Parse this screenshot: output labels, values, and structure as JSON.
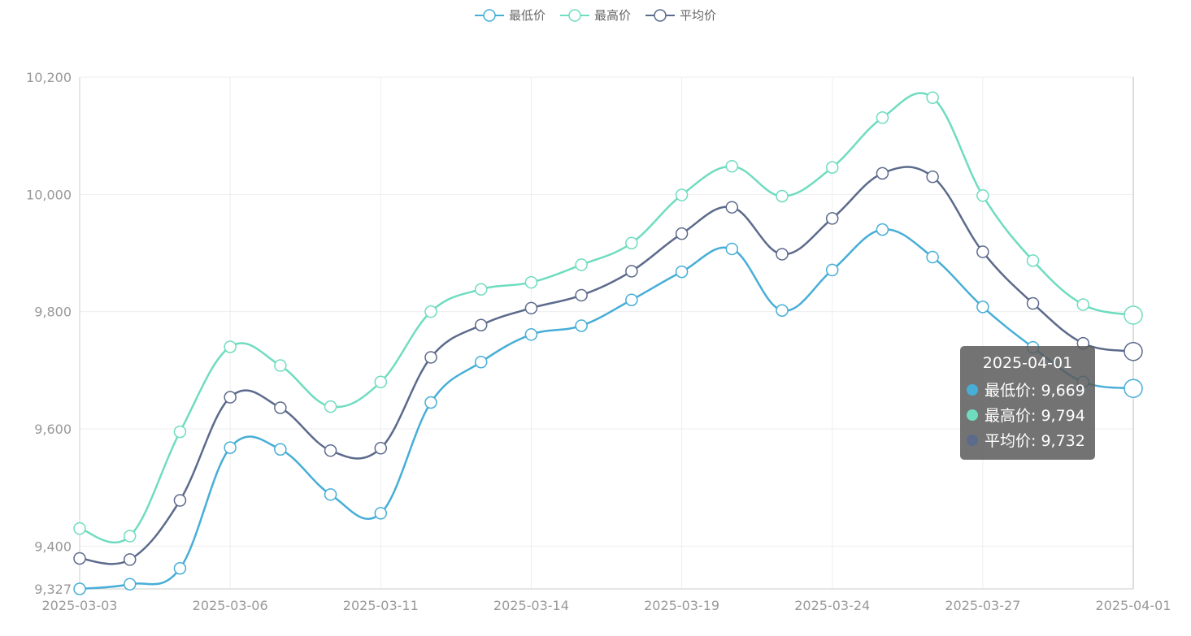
{
  "legend": [
    {
      "name": "最低价",
      "color": "#47aed7"
    },
    {
      "name": "最高价",
      "color": "#6fdcc0"
    },
    {
      "name": "平均价",
      "color": "#5c6a8b"
    }
  ],
  "tooltip": {
    "title": "2025-04-01",
    "rows": [
      {
        "label": "最低价: 9,669",
        "color": "#47aed7"
      },
      {
        "label": "最高价: 9,794",
        "color": "#6fdcc0"
      },
      {
        "label": "平均价: 9,732",
        "color": "#5c6a8b"
      }
    ]
  },
  "chart_data": {
    "type": "line",
    "title": "",
    "xlabel": "",
    "ylabel": "",
    "ylim": [
      9327,
      10200
    ],
    "y_ticks": [
      "9,327",
      "9,400",
      "9,600",
      "9,800",
      "10,000",
      "10,200"
    ],
    "y_tick_values": [
      9327,
      9400,
      9600,
      9800,
      10000,
      10200
    ],
    "x_tick_labels": [
      "2025-03-03",
      "2025-03-06",
      "2025-03-11",
      "2025-03-14",
      "2025-03-19",
      "2025-03-24",
      "2025-03-27",
      "2025-04-01"
    ],
    "grid": true,
    "legend_position": "top-center",
    "series": [
      {
        "name": "最低价",
        "color": "#47aed7",
        "values": [
          9327,
          9335,
          9362,
          9568,
          9565,
          9488,
          9456,
          9645,
          9714,
          9761,
          9776,
          9820,
          9868,
          9907,
          9802,
          9871,
          9940,
          9893,
          9808,
          9739,
          9680,
          9669
        ]
      },
      {
        "name": "最高价",
        "color": "#6fdcc0",
        "values": [
          9430,
          9417,
          9595,
          9740,
          9708,
          9638,
          9680,
          9800,
          9838,
          9850,
          9880,
          9917,
          9999,
          10048,
          9997,
          10046,
          10131,
          10165,
          9998,
          9887,
          9812,
          9794
        ]
      },
      {
        "name": "平均价",
        "color": "#5c6a8b",
        "values": [
          9379,
          9377,
          9478,
          9654,
          9636,
          9563,
          9567,
          9722,
          9777,
          9806,
          9828,
          9869,
          9933,
          9978,
          9898,
          9959,
          10036,
          10030,
          9902,
          9814,
          9746,
          9732
        ]
      }
    ]
  }
}
